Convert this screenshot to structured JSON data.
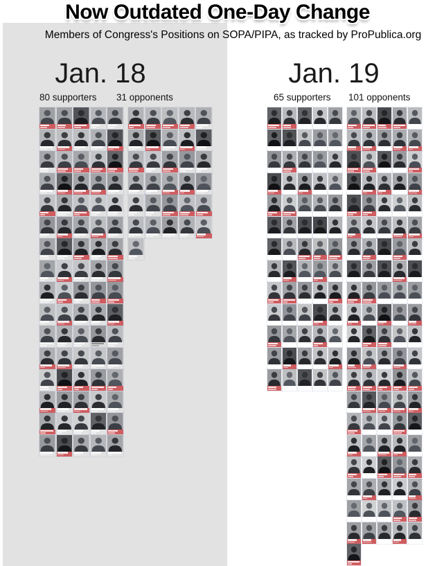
{
  "title": "Now Outdated One-Day Change",
  "subtitle": "Members of Congress's Positions on SOPA/PIPA, as tracked by ProPublica.org",
  "party_colors": {
    "republican": "#cf5d60",
    "democrat": "#7490c3",
    "independent": "#dcdcdc",
    "left_panel_background": "#e2e2e2"
  },
  "panels": [
    {
      "id": "jan18",
      "date_label": "Jan. 18",
      "supporters_count": 80,
      "opponents_count": 31,
      "supporters_label": "80 supporters",
      "opponents_label": "31 opponents",
      "supporters_rows": [
        "RRRBB",
        "BRBBR",
        "BRRRR",
        "BRRRB",
        "RBRBB",
        "BRBRB",
        "BBRBR",
        "BRBBR",
        "BRBRR",
        "BRBBR",
        "BBBIB",
        "RRBBB",
        "BRRRR",
        "RBRBB",
        "RBBBR",
        "BRBBB"
      ],
      "opponents_rows": [
        "RRRRB",
        "BRBRB",
        "RBRBB",
        "BBRRB",
        "BBRRR",
        "BBBBR",
        "B"
      ]
    },
    {
      "id": "jan19",
      "date_label": "Jan. 19",
      "supporters_count": 65,
      "opponents_count": 101,
      "supporters_label": "65 supporters",
      "opponents_label": "101 opponents",
      "supporters_rows": [
        "RRBBB",
        "BBBBB",
        "BRBBB",
        "RBRBB",
        "RRBBB",
        "BBBBB",
        "BBRRR",
        "BRBRB",
        "RRBBR",
        "BBBRB",
        "RBBRB",
        "BRBBR",
        "RBBBB"
      ],
      "opponents_rows": [
        "RRRRB",
        "RRBRR",
        "RRBBR",
        "BRRBR",
        "RRBBB",
        "RBBRR",
        "BRBRB",
        "BBBRB",
        "RRBBB",
        "RBRBR",
        "BRRBB",
        "RRBRB",
        "RRRRR",
        "BRRRR",
        "RBBRB",
        "RBRRB",
        "RBRRR",
        "BRBBR",
        "BBBRR",
        "RRBRB",
        "R"
      ]
    }
  ],
  "chart_data": {
    "type": "pictogram",
    "title": "Now Outdated One-Day Change",
    "subtitle": "Members of Congress's Positions on SOPA/PIPA, as tracked by ProPublica.org",
    "categories": [
      "Jan. 18",
      "Jan. 19"
    ],
    "series": [
      {
        "name": "supporters",
        "values": [
          80,
          65
        ]
      },
      {
        "name": "opponents",
        "values": [
          31,
          101
        ]
      }
    ],
    "unit": "members of Congress",
    "encoding": "one portrait tile per member; tile label color red = Republican, blue = Democrat, gray = Independent",
    "layout": "two side-by-side panels, each with a supporters grid (5 columns) and an opponents grid (5 columns)"
  }
}
